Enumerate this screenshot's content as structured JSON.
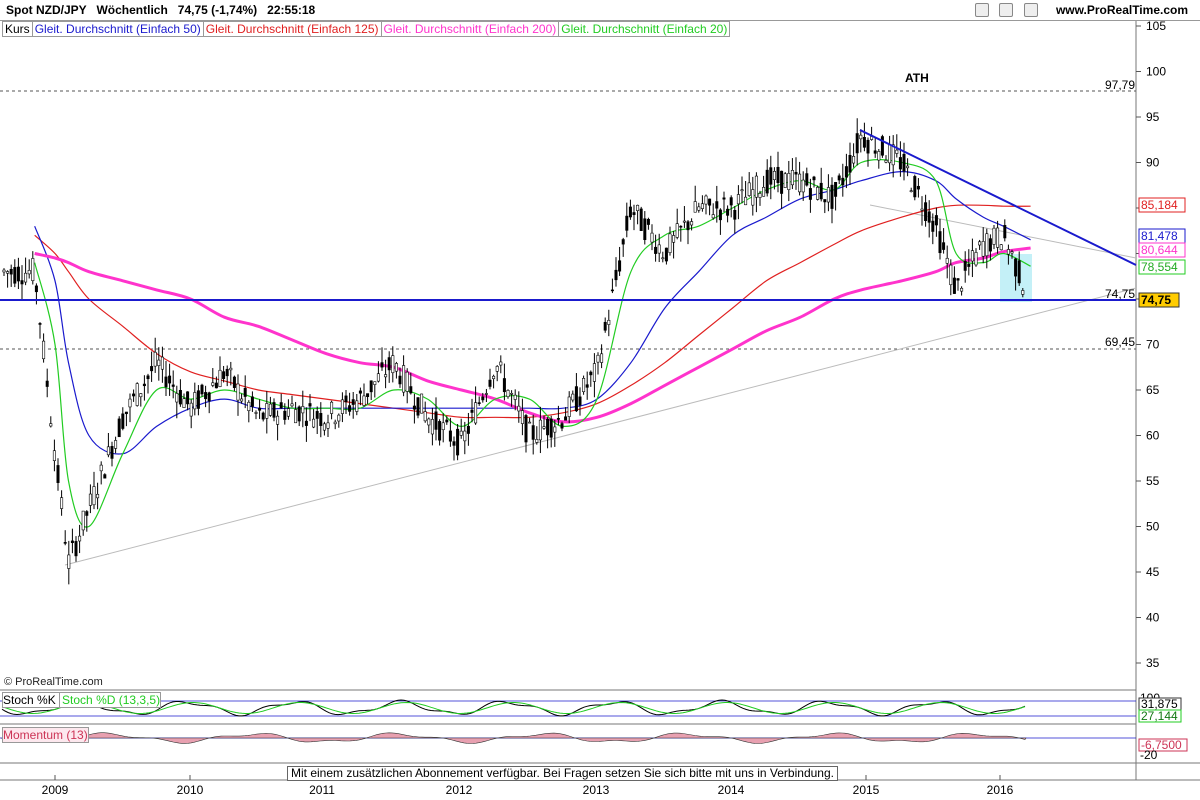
{
  "header": {
    "title": "Spot NZD/JPY   Wöchentlich   74,75 (-1,74%)   22:55:18",
    "site": "www.ProRealTime.com"
  },
  "legend": {
    "kurs": "Kurs",
    "items": [
      {
        "label": "Gleit. Durchschnitt (Einfach 50)",
        "color": "#1a1acd"
      },
      {
        "label": "Gleit. Durchschnitt (Einfach 125)",
        "color": "#e02020"
      },
      {
        "label": "Gleit. Durchschnitt (Einfach 200)",
        "color": "#ff33cc"
      },
      {
        "label": "Gleit. Durchschnitt (Einfach 20)",
        "color": "#22cc22"
      }
    ]
  },
  "annotations": {
    "ath": "ATH",
    "level_9779": "97,79",
    "level_7475": "74,75",
    "level_6945": "69,45",
    "copyright": "© ProRealTime.com"
  },
  "price_labels": {
    "ma125": "85,184",
    "ma50": "81,478",
    "ma200": "80,644",
    "ma20": "78,554",
    "last": "74,75"
  },
  "stoch": {
    "k_label": "Stoch %K",
    "d_label": "Stoch %D (13,3,5)",
    "val_k": "31,875",
    "val_d": "27,144",
    "top": "100"
  },
  "momentum": {
    "label": "Momentum (13)",
    "val": "-6,7500",
    "bottom": "-20"
  },
  "footer": {
    "notice": "Mit einem zusätzlichen Abonnement verfügbar. Bei Fragen setzen Sie sich bitte mit uns in Verbindung."
  },
  "chart_data": {
    "type": "line",
    "title": "Spot NZD/JPY Wöchentlich",
    "yticks": [
      105,
      100,
      95,
      90,
      85,
      80,
      75,
      70,
      65,
      60,
      55,
      50,
      45,
      40,
      35
    ],
    "ylim": [
      32,
      107
    ],
    "xticks": [
      "2009",
      "2010",
      "2011",
      "2012",
      "2013",
      "2014",
      "2015",
      "2016"
    ],
    "x": [
      2008.85,
      2009.0,
      2009.1,
      2009.25,
      2009.5,
      2009.75,
      2010.0,
      2010.25,
      2010.5,
      2010.75,
      2011.0,
      2011.25,
      2011.5,
      2011.75,
      2012.0,
      2012.25,
      2012.5,
      2012.75,
      2013.0,
      2013.25,
      2013.5,
      2013.75,
      2014.0,
      2014.25,
      2014.5,
      2014.75,
      2014.95,
      2015.25,
      2015.5,
      2015.65,
      2015.85,
      2016.0,
      2016.2
    ],
    "series": [
      {
        "name": "Kurs",
        "color": "#000000",
        "values": [
          78,
          58,
          46,
          52,
          62,
          68,
          63,
          67,
          62,
          63,
          62,
          64,
          68,
          62,
          59,
          68,
          60,
          62,
          67,
          85,
          80,
          85,
          85,
          88,
          88,
          86,
          93,
          90,
          83,
          76,
          81,
          82,
          74.75
        ]
      },
      {
        "name": "Gleit. Durchschnitt (Einfach 50)",
        "color": "#1a1acd",
        "values": [
          83,
          77,
          68,
          60,
          58,
          61,
          63,
          64,
          63,
          63,
          63,
          63,
          63,
          63,
          63,
          63,
          63,
          63,
          64,
          68,
          74,
          78,
          82,
          84,
          86,
          87,
          88,
          89,
          88,
          86,
          84,
          83,
          81.5
        ]
      },
      {
        "name": "Gleit. Durchschnitt (Einfach 125)",
        "color": "#e02020",
        "values": [
          82,
          80,
          78,
          75,
          72,
          69,
          67,
          66,
          65,
          64.5,
          64,
          63.5,
          63,
          62.5,
          62,
          62,
          62,
          62.5,
          63.5,
          65.5,
          68,
          71,
          74,
          77,
          79,
          81,
          82.5,
          84,
          85,
          85.3,
          85.3,
          85.2,
          85.2
        ]
      },
      {
        "name": "Gleit. Durchschnitt (Einfach 200)",
        "color": "#ff33cc",
        "values": [
          80,
          79.5,
          79,
          78,
          77,
          76,
          75,
          73,
          72,
          70.5,
          69,
          68,
          67.5,
          66,
          65,
          64,
          62.5,
          61.5,
          62,
          63.5,
          65.5,
          67.5,
          69.5,
          71.5,
          73,
          75,
          76,
          77,
          78,
          79,
          79.5,
          80.2,
          80.6
        ]
      },
      {
        "name": "Gleit. Durchschnitt (Einfach 20)",
        "color": "#22cc22",
        "values": [
          79,
          70,
          55,
          50,
          58,
          65,
          64,
          65,
          64,
          63,
          63,
          63,
          65,
          64,
          61,
          64,
          64,
          61,
          64,
          78,
          82,
          83,
          85,
          87,
          88,
          87,
          90,
          90,
          88,
          80,
          79,
          80,
          78.6
        ]
      }
    ]
  }
}
